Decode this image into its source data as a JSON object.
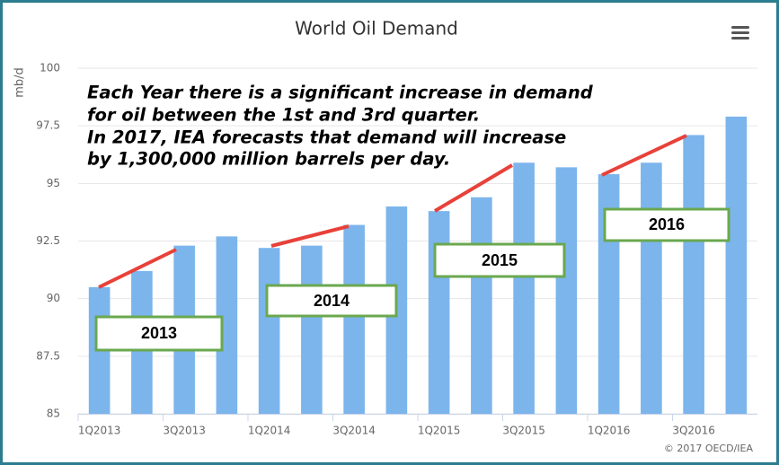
{
  "chart_data": {
    "type": "bar",
    "title": "World Oil Demand",
    "y_label": "mb/d",
    "credit": "© 2017 OECD/IEA",
    "annotations": [
      "Each Year there is a significant increase in demand",
      "for oil between the 1st and 3rd quarter.",
      "In 2017, IEA forecasts that demand will increase",
      "by 1,300,000 million barrels per day."
    ],
    "year_boxes": [
      "2013",
      "2014",
      "2015",
      "2016"
    ],
    "categories": [
      "1Q2013",
      null,
      "3Q2013",
      null,
      "1Q2014",
      null,
      "3Q2014",
      null,
      "1Q2015",
      null,
      "3Q2015",
      null,
      "1Q2016",
      null,
      "3Q2016",
      null
    ],
    "values": [
      90.5,
      91.2,
      92.3,
      92.7,
      92.2,
      92.3,
      93.2,
      94.0,
      93.8,
      94.4,
      95.9,
      95.7,
      95.4,
      95.9,
      97.1,
      97.9
    ],
    "color": "#7cb5ec",
    "ylim": [
      85,
      100
    ],
    "yticks": [
      85,
      87.5,
      90,
      92.5,
      95,
      97.5,
      100
    ],
    "grid": true
  }
}
